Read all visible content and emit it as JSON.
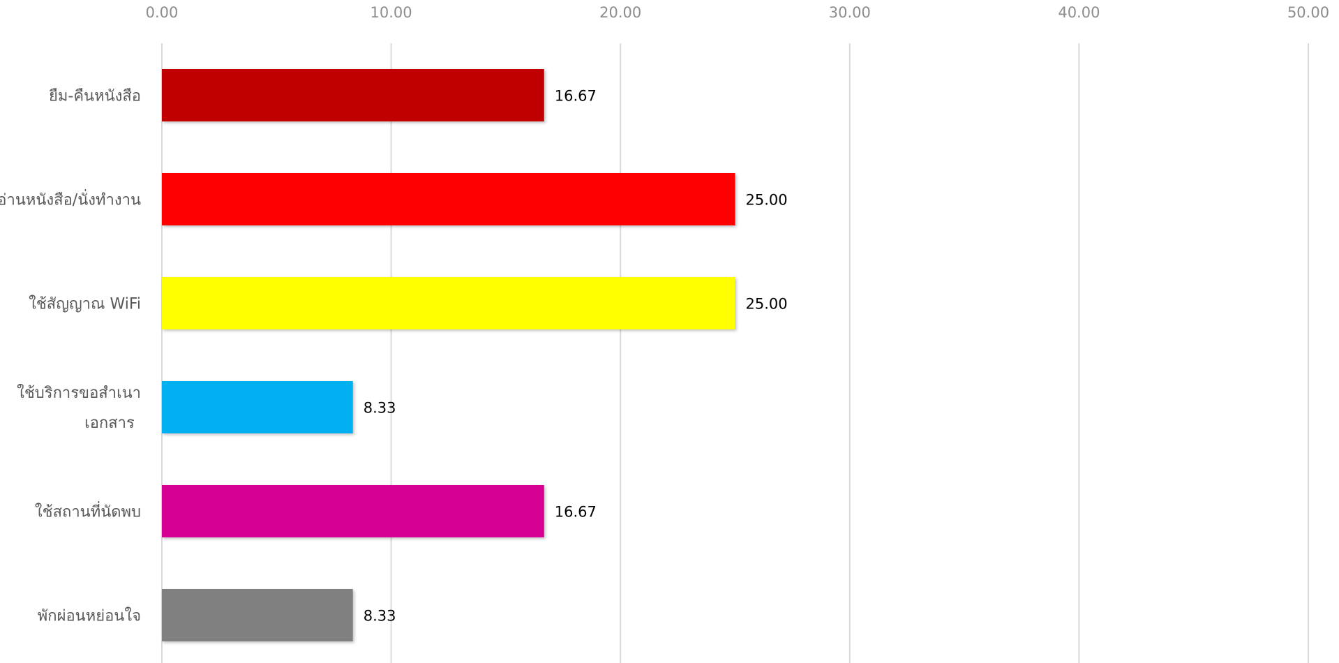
{
  "chart_data": {
    "type": "bar",
    "orientation": "horizontal",
    "categories": [
      [
        "ยืม-คืนหนังสือ"
      ],
      [
        "อ่านหนังสือ/นั่งทำงาน"
      ],
      [
        "ใช้สัญญาณ WiFi"
      ],
      [
        "ใช้บริการขอสำเนา",
        "เอกสาร"
      ],
      [
        "ใช้สถานที่นัดพบ"
      ],
      [
        "พักผ่อนหย่อนใจ"
      ]
    ],
    "values": [
      16.67,
      25.0,
      25.0,
      8.33,
      16.67,
      8.33
    ],
    "value_labels": [
      "16.67",
      "25.00",
      "25.00",
      "8.33",
      "16.67",
      "8.33"
    ],
    "colors": [
      "#c00000",
      "#ff0000",
      "#ffff00",
      "#00b0f0",
      "#d60093",
      "#808080"
    ],
    "xlim": [
      0,
      50
    ],
    "xticks": [
      "0.00",
      "10.00",
      "20.00",
      "30.00",
      "40.00",
      "50.00"
    ],
    "title": "",
    "xlabel": "",
    "ylabel": "",
    "x_axis_position": "top",
    "grid": "vertical",
    "legend": "none",
    "data_labels": true
  }
}
